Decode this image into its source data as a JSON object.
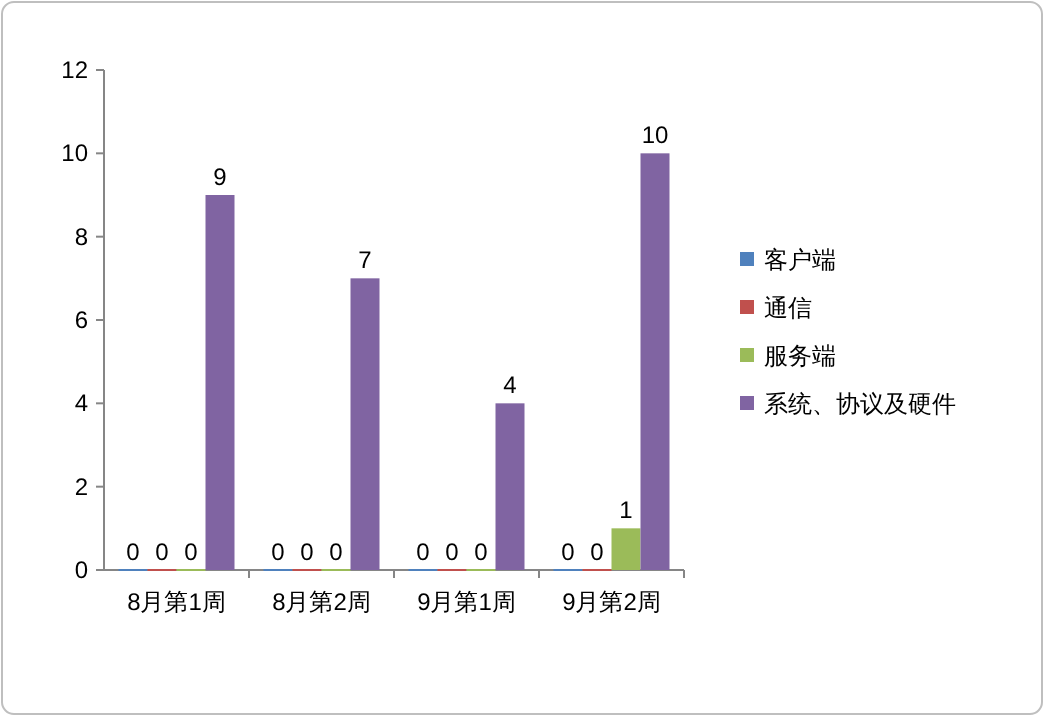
{
  "chart_data": {
    "type": "bar",
    "categories": [
      "8月第1周",
      "8月第2周",
      "9月第1周",
      "9月第2周"
    ],
    "series": [
      {
        "name": "客户端",
        "color": "#4f81bd",
        "values": [
          0,
          0,
          0,
          0
        ]
      },
      {
        "name": "通信",
        "color": "#c0504d",
        "values": [
          0,
          0,
          0,
          0
        ]
      },
      {
        "name": "服务端",
        "color": "#9bbb59",
        "values": [
          0,
          0,
          0,
          1
        ]
      },
      {
        "name": "系统、协议及硬件",
        "color": "#8064a2",
        "values": [
          9,
          7,
          4,
          10
        ]
      }
    ],
    "ylim": [
      0,
      12
    ],
    "yticks": [
      0,
      2,
      4,
      6,
      8,
      10,
      12
    ],
    "data_labels": true,
    "legend": "right",
    "grid": false
  }
}
